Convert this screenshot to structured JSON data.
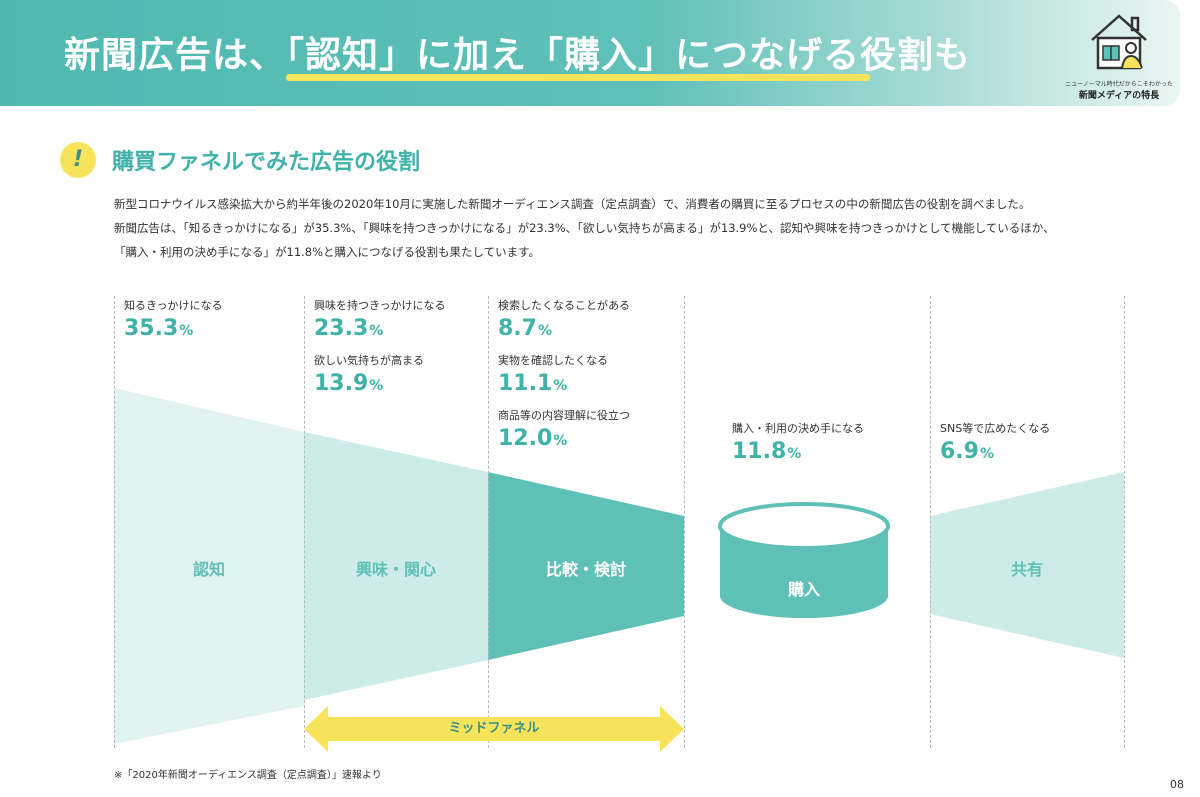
{
  "header": {
    "title": "新聞広告は、「認知」に加え「購入」につなげる役割も",
    "brand_sub": "ニューノーマル時代だからこそわかった",
    "brand_main": "新聞メディアの特長"
  },
  "section": {
    "badge": "!",
    "title": "購買ファネルでみた広告の役割"
  },
  "body": {
    "lines": [
      "新型コロナウイルス感染拡大から約半年後の2020年10月に実施した新聞オーディエンス調査（定点調査）で、消費者の購買に至るプロセスの中の新聞広告の役割を調べました。",
      "新聞広告は、「知るきっかけになる」が35.3%、「興味を持つきっかけになる」が23.3%、「欲しい気持ちが高まる」が13.9%と、認知や興味を持つきっかけとして機能しているほか、",
      "「購入・利用の決め手になる」が11.8%と購入につなげる役割も果たしています。"
    ]
  },
  "stats": [
    {
      "label": "知るきっかけになる",
      "value": "35.3",
      "unit": "%"
    },
    {
      "label": "興味を持つきっかけになる",
      "value": "23.3",
      "unit": "%"
    },
    {
      "label": "欲しい気持ちが高まる",
      "value": "13.9",
      "unit": "%"
    },
    {
      "label": "検索したくなることがある",
      "value": "8.7",
      "unit": "%"
    },
    {
      "label": "実物を確認したくなる",
      "value": "11.1",
      "unit": "%"
    },
    {
      "label": "商品等の内容理解に役立つ",
      "value": "12.0",
      "unit": "%"
    },
    {
      "label": "購入・利用の決め手になる",
      "value": "11.8",
      "unit": "%"
    },
    {
      "label": "SNS等で広めたくなる",
      "value": "6.9",
      "unit": "%"
    }
  ],
  "stages": [
    "認知",
    "興味・関心",
    "比較・検討",
    "購入",
    "共有"
  ],
  "mid_funnel_label": "ミッドファネル",
  "footnote": "※「2020年新聞オーディエンス調査（定点調査）」速報より",
  "page_number": "08",
  "colors": {
    "teal": "#5fc0b8",
    "teal_dark": "#3fb2a9",
    "teal_light": "#cdebe8",
    "teal_lighter": "#e0f3f1",
    "yellow": "#f8e45a"
  }
}
